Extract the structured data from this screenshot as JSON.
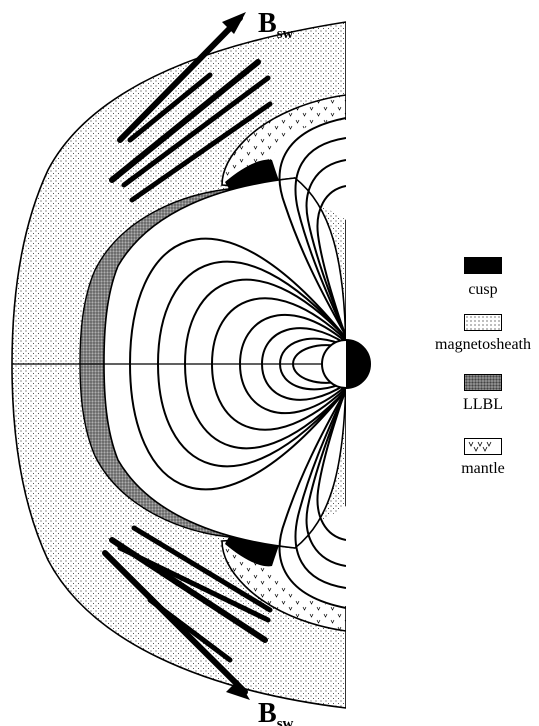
{
  "diagram": {
    "field_label_top": {
      "main": "B",
      "sub": "sw"
    },
    "field_label_bottom": {
      "main": "B",
      "sub": "sw"
    }
  },
  "legend": {
    "items": [
      {
        "id": "cusp",
        "label": "cusp"
      },
      {
        "id": "magnetosheath",
        "label": "magnetosheath"
      },
      {
        "id": "llbl",
        "label": "LLBL"
      },
      {
        "id": "mantle",
        "label": "mantle"
      }
    ]
  }
}
